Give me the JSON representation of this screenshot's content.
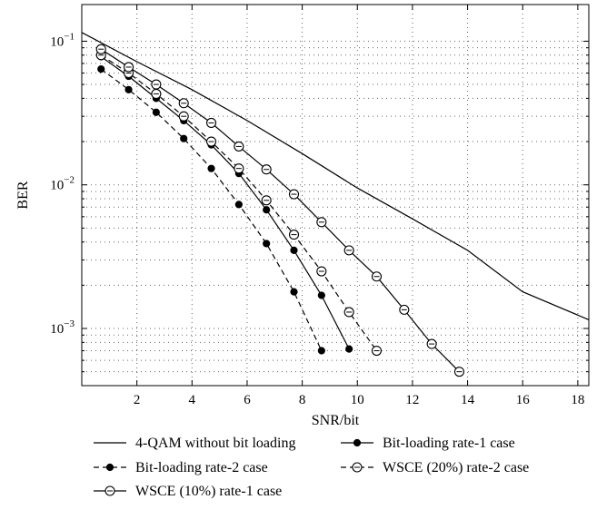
{
  "chart_data": {
    "type": "line",
    "title": "",
    "xlabel": "SNR/bit",
    "ylabel": "BER",
    "xlim": [
      0,
      18.4
    ],
    "ylim": [
      0.0004,
      0.18
    ],
    "yscale": "log",
    "grid": "dotted",
    "legend_position": "bottom",
    "x_ticks": [
      2,
      4,
      6,
      8,
      10,
      12,
      14,
      16,
      18
    ],
    "y_ticks": [
      0.1,
      0.01,
      0.001
    ],
    "y_tick_bases": [
      "10",
      "10",
      "10"
    ],
    "y_tick_exponents": [
      "−1",
      "−2",
      "−3"
    ],
    "series": [
      {
        "name": "4-QAM without bit loading",
        "line": "solid",
        "marker": "none",
        "x": [
          0,
          2,
          4,
          6,
          8,
          10,
          12,
          14,
          16,
          18.4
        ],
        "y": [
          0.115,
          0.072,
          0.046,
          0.028,
          0.0165,
          0.0095,
          0.0058,
          0.0035,
          0.0018,
          0.00115
        ]
      },
      {
        "name": "Bit-loading rate-1 case",
        "line": "solid",
        "marker": "filled-circle",
        "x": [
          0.7,
          1.7,
          2.7,
          3.7,
          4.7,
          5.7,
          6.7,
          7.7,
          8.7,
          9.7
        ],
        "y": [
          0.078,
          0.057,
          0.04,
          0.028,
          0.019,
          0.012,
          0.0067,
          0.0035,
          0.0017,
          0.00072
        ]
      },
      {
        "name": "Bit-loading rate-2 case",
        "line": "dashed",
        "marker": "filled-circle",
        "x": [
          0.7,
          1.7,
          2.7,
          3.7,
          4.7,
          5.7,
          6.7,
          7.7,
          8.7
        ],
        "y": [
          0.064,
          0.046,
          0.032,
          0.021,
          0.013,
          0.0073,
          0.0039,
          0.0018,
          0.0007
        ]
      },
      {
        "name": "WSCE (20%) rate-2 case",
        "line": "dashed",
        "marker": "open-circle",
        "x": [
          0.7,
          1.7,
          2.7,
          3.7,
          4.7,
          5.7,
          6.7,
          7.7,
          8.7,
          9.7,
          10.7
        ],
        "y": [
          0.08,
          0.06,
          0.043,
          0.03,
          0.02,
          0.013,
          0.0078,
          0.0045,
          0.0025,
          0.0013,
          0.0007
        ]
      },
      {
        "name": "WSCE (10%) rate-1 case",
        "line": "solid",
        "marker": "open-circle",
        "x": [
          0.7,
          1.7,
          2.7,
          3.7,
          4.7,
          5.7,
          6.7,
          7.7,
          8.7,
          9.7,
          10.7,
          11.7,
          12.7,
          13.7
        ],
        "y": [
          0.088,
          0.066,
          0.05,
          0.037,
          0.027,
          0.0185,
          0.0128,
          0.0086,
          0.0055,
          0.0035,
          0.0023,
          0.00135,
          0.00078,
          0.0005
        ]
      }
    ]
  }
}
